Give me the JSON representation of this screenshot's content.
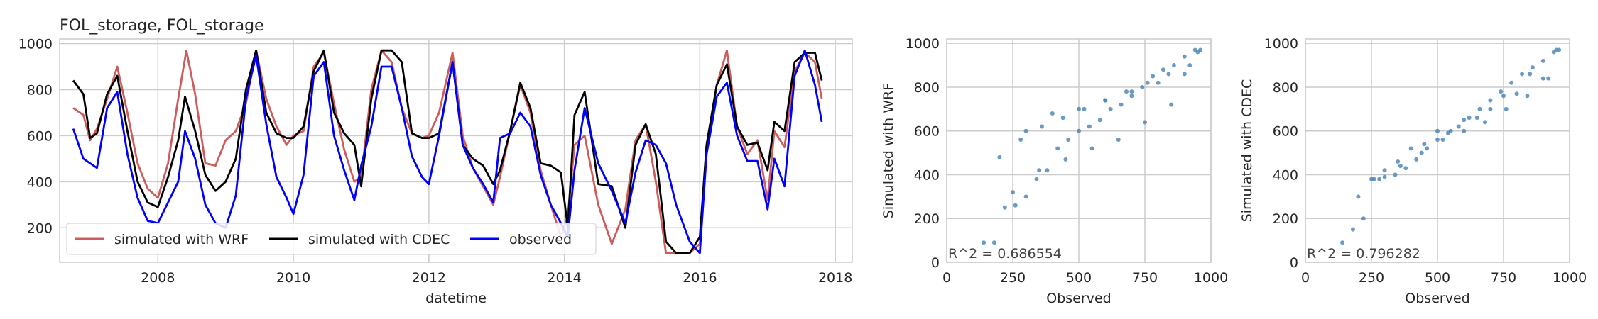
{
  "chart_data": [
    {
      "type": "line",
      "title": "FOL_storage, FOL_storage",
      "xlabel": "datetime",
      "ylabel": "",
      "xlim": [
        2006.55,
        2018.25
      ],
      "ylim": [
        50,
        1020
      ],
      "xticks": [
        2008,
        2010,
        2012,
        2014,
        2016,
        2018
      ],
      "yticks": [
        200,
        400,
        600,
        800,
        1000
      ],
      "grid": true,
      "legend": {
        "position": "lower-left",
        "ncol": 3
      },
      "series": [
        {
          "name": "simulated with WRF",
          "color": "#cd5c5c",
          "x": [
            2006.75,
            2006.9,
            2007.0,
            2007.1,
            2007.25,
            2007.4,
            2007.55,
            2007.7,
            2007.85,
            2008.0,
            2008.15,
            2008.3,
            2008.42,
            2008.55,
            2008.7,
            2008.85,
            2009.0,
            2009.15,
            2009.3,
            2009.45,
            2009.6,
            2009.75,
            2009.9,
            2010.0,
            2010.15,
            2010.3,
            2010.45,
            2010.6,
            2010.75,
            2010.9,
            2011.0,
            2011.15,
            2011.3,
            2011.45,
            2011.6,
            2011.75,
            2011.9,
            2012.0,
            2012.15,
            2012.35,
            2012.5,
            2012.65,
            2012.8,
            2012.95,
            2013.05,
            2013.2,
            2013.35,
            2013.5,
            2013.65,
            2013.8,
            2013.95,
            2014.05,
            2014.15,
            2014.3,
            2014.5,
            2014.7,
            2014.9,
            2015.05,
            2015.2,
            2015.35,
            2015.5,
            2015.65,
            2015.85,
            2016.0,
            2016.1,
            2016.25,
            2016.4,
            2016.55,
            2016.7,
            2016.85,
            2017.0,
            2017.1,
            2017.25,
            2017.4,
            2017.55,
            2017.7,
            2017.8
          ],
          "y": [
            720,
            690,
            580,
            630,
            760,
            900,
            700,
            480,
            370,
            330,
            480,
            760,
            970,
            780,
            480,
            470,
            580,
            620,
            740,
            970,
            760,
            640,
            560,
            600,
            620,
            900,
            960,
            740,
            540,
            400,
            420,
            800,
            970,
            920,
            720,
            610,
            590,
            600,
            700,
            960,
            600,
            460,
            380,
            300,
            420,
            620,
            820,
            700,
            450,
            300,
            160,
            250,
            560,
            600,
            300,
            130,
            280,
            580,
            650,
            400,
            90,
            90,
            90,
            130,
            560,
            820,
            970,
            640,
            520,
            580,
            320,
            620,
            550,
            880,
            960,
            920,
            760
          ]
        },
        {
          "name": "simulated with CDEC",
          "color": "#000000",
          "x": [
            2006.75,
            2006.9,
            2007.0,
            2007.1,
            2007.25,
            2007.4,
            2007.55,
            2007.7,
            2007.85,
            2008.0,
            2008.15,
            2008.3,
            2008.4,
            2008.55,
            2008.7,
            2008.85,
            2009.0,
            2009.15,
            2009.3,
            2009.45,
            2009.6,
            2009.75,
            2009.9,
            2010.0,
            2010.15,
            2010.3,
            2010.45,
            2010.6,
            2010.75,
            2010.9,
            2011.0,
            2011.15,
            2011.3,
            2011.45,
            2011.6,
            2011.75,
            2011.9,
            2012.0,
            2012.15,
            2012.35,
            2012.5,
            2012.65,
            2012.8,
            2012.95,
            2013.05,
            2013.2,
            2013.35,
            2013.5,
            2013.65,
            2013.8,
            2013.95,
            2014.05,
            2014.15,
            2014.3,
            2014.5,
            2014.7,
            2014.9,
            2015.05,
            2015.2,
            2015.35,
            2015.5,
            2015.65,
            2015.85,
            2016.0,
            2016.1,
            2016.25,
            2016.4,
            2016.55,
            2016.7,
            2016.85,
            2017.0,
            2017.1,
            2017.25,
            2017.4,
            2017.55,
            2017.7,
            2017.8
          ],
          "y": [
            840,
            780,
            590,
            610,
            780,
            860,
            620,
            400,
            310,
            290,
            420,
            580,
            770,
            620,
            430,
            360,
            400,
            500,
            800,
            970,
            700,
            610,
            590,
            590,
            640,
            880,
            970,
            700,
            610,
            560,
            380,
            760,
            970,
            970,
            920,
            610,
            590,
            590,
            610,
            920,
            560,
            500,
            470,
            390,
            450,
            620,
            830,
            720,
            480,
            470,
            440,
            200,
            690,
            790,
            390,
            380,
            200,
            560,
            650,
            520,
            140,
            90,
            90,
            160,
            560,
            820,
            910,
            640,
            560,
            570,
            450,
            660,
            620,
            920,
            960,
            960,
            840
          ]
        },
        {
          "name": "observed",
          "color": "#0000ff",
          "x": [
            2006.75,
            2006.9,
            2007.0,
            2007.1,
            2007.25,
            2007.4,
            2007.55,
            2007.7,
            2007.85,
            2008.0,
            2008.15,
            2008.3,
            2008.4,
            2008.55,
            2008.7,
            2008.85,
            2009.0,
            2009.15,
            2009.3,
            2009.45,
            2009.6,
            2009.75,
            2009.9,
            2010.0,
            2010.15,
            2010.3,
            2010.45,
            2010.6,
            2010.75,
            2010.9,
            2011.0,
            2011.15,
            2011.3,
            2011.45,
            2011.6,
            2011.75,
            2011.9,
            2012.0,
            2012.15,
            2012.35,
            2012.5,
            2012.65,
            2012.8,
            2012.95,
            2013.05,
            2013.2,
            2013.35,
            2013.5,
            2013.65,
            2013.8,
            2013.95,
            2014.05,
            2014.15,
            2014.3,
            2014.5,
            2014.7,
            2014.9,
            2015.05,
            2015.2,
            2015.35,
            2015.5,
            2015.65,
            2015.85,
            2016.0,
            2016.1,
            2016.25,
            2016.4,
            2016.55,
            2016.7,
            2016.85,
            2017.0,
            2017.1,
            2017.25,
            2017.4,
            2017.55,
            2017.7,
            2017.8
          ],
          "y": [
            630,
            500,
            480,
            460,
            720,
            790,
            520,
            330,
            230,
            220,
            310,
            400,
            620,
            500,
            300,
            220,
            200,
            340,
            760,
            950,
            650,
            420,
            330,
            260,
            430,
            860,
            920,
            600,
            450,
            320,
            470,
            640,
            900,
            900,
            720,
            510,
            420,
            390,
            600,
            920,
            560,
            460,
            390,
            310,
            590,
            610,
            700,
            640,
            430,
            300,
            220,
            160,
            450,
            720,
            480,
            360,
            220,
            440,
            580,
            560,
            480,
            300,
            140,
            90,
            520,
            770,
            830,
            600,
            490,
            490,
            280,
            500,
            380,
            860,
            970,
            820,
            660
          ]
        }
      ]
    },
    {
      "type": "scatter",
      "title": "",
      "xlabel": "Observed",
      "ylabel": "Simulated with WRF",
      "xlim": [
        0,
        1000
      ],
      "ylim": [
        0,
        1020
      ],
      "xticks": [
        0,
        250,
        500,
        750,
        1000
      ],
      "yticks": [
        0,
        200,
        400,
        600,
        800,
        1000
      ],
      "grid": true,
      "color": "#4682b4",
      "annotation": "R^2 = 0.686554",
      "x": [
        140,
        180,
        220,
        260,
        300,
        340,
        380,
        420,
        460,
        500,
        540,
        580,
        620,
        660,
        700,
        740,
        780,
        820,
        860,
        900,
        940,
        960,
        200,
        280,
        360,
        440,
        520,
        600,
        680,
        760,
        840,
        920,
        300,
        400,
        500,
        600,
        700,
        800,
        900,
        250,
        350,
        450,
        550,
        650,
        750,
        850,
        950
      ],
      "y": [
        90,
        90,
        250,
        260,
        300,
        380,
        420,
        520,
        560,
        600,
        620,
        650,
        700,
        720,
        760,
        800,
        850,
        880,
        900,
        940,
        970,
        970,
        480,
        560,
        620,
        660,
        700,
        740,
        780,
        820,
        860,
        900,
        600,
        680,
        700,
        740,
        780,
        820,
        860,
        320,
        420,
        470,
        520,
        560,
        640,
        720,
        960
      ]
    },
    {
      "type": "scatter",
      "title": "",
      "xlabel": "Observed",
      "ylabel": "Simulated with CDEC",
      "xlim": [
        0,
        1000
      ],
      "ylim": [
        0,
        1020
      ],
      "xticks": [
        0,
        250,
        500,
        750,
        1000
      ],
      "yticks": [
        0,
        200,
        400,
        600,
        800,
        1000
      ],
      "grid": true,
      "color": "#4682b4",
      "annotation": "R^2 = 0.796282",
      "x": [
        140,
        180,
        220,
        260,
        300,
        340,
        380,
        420,
        460,
        500,
        540,
        580,
        620,
        660,
        700,
        740,
        780,
        820,
        860,
        900,
        940,
        960,
        200,
        280,
        360,
        440,
        520,
        600,
        680,
        760,
        840,
        920,
        300,
        400,
        500,
        600,
        700,
        800,
        900,
        250,
        350,
        450,
        550,
        650,
        750,
        850,
        950
      ],
      "y": [
        90,
        150,
        200,
        380,
        390,
        400,
        430,
        470,
        520,
        560,
        590,
        620,
        660,
        700,
        740,
        780,
        820,
        860,
        890,
        920,
        960,
        970,
        300,
        380,
        440,
        500,
        560,
        600,
        640,
        700,
        760,
        840,
        420,
        520,
        600,
        650,
        700,
        770,
        840,
        380,
        460,
        540,
        600,
        660,
        760,
        860,
        970
      ]
    }
  ]
}
